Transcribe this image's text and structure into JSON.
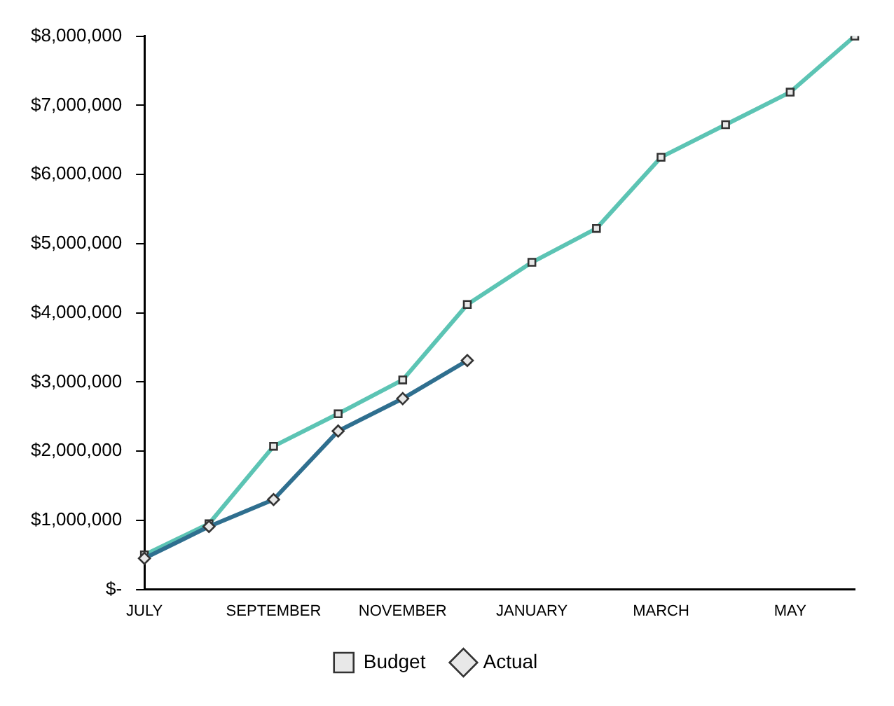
{
  "chart_data": {
    "type": "line",
    "categories": [
      "JULY",
      null,
      "SEPTEMBER",
      null,
      "NOVEMBER",
      null,
      "JANUARY",
      null,
      "MARCH",
      null,
      "MAY",
      null
    ],
    "series": [
      {
        "name": "Budget",
        "color": "#5cc4b4",
        "marker": "square",
        "values": [
          500000,
          950000,
          2070000,
          2540000,
          3030000,
          4120000,
          4730000,
          5220000,
          6250000,
          6720000,
          7190000,
          8000000
        ]
      },
      {
        "name": "Actual",
        "color": "#2f6f8f",
        "marker": "diamond",
        "values": [
          450000,
          910000,
          1300000,
          2290000,
          2760000,
          3310000,
          null,
          null,
          null,
          null,
          null,
          null
        ]
      }
    ],
    "ylim": [
      0,
      8000000
    ],
    "yticks": [
      {
        "value": 0,
        "label": "$-"
      },
      {
        "value": 1000000,
        "label": "$1,000,000"
      },
      {
        "value": 2000000,
        "label": "$2,000,000"
      },
      {
        "value": 3000000,
        "label": "$3,000,000"
      },
      {
        "value": 4000000,
        "label": "$4,000,000"
      },
      {
        "value": 5000000,
        "label": "$5,000,000"
      },
      {
        "value": 6000000,
        "label": "$6,000,000"
      },
      {
        "value": 7000000,
        "label": "$7,000,000"
      },
      {
        "value": 8000000,
        "label": "$8,000,000"
      }
    ],
    "grid": false,
    "legend": "bottom"
  }
}
